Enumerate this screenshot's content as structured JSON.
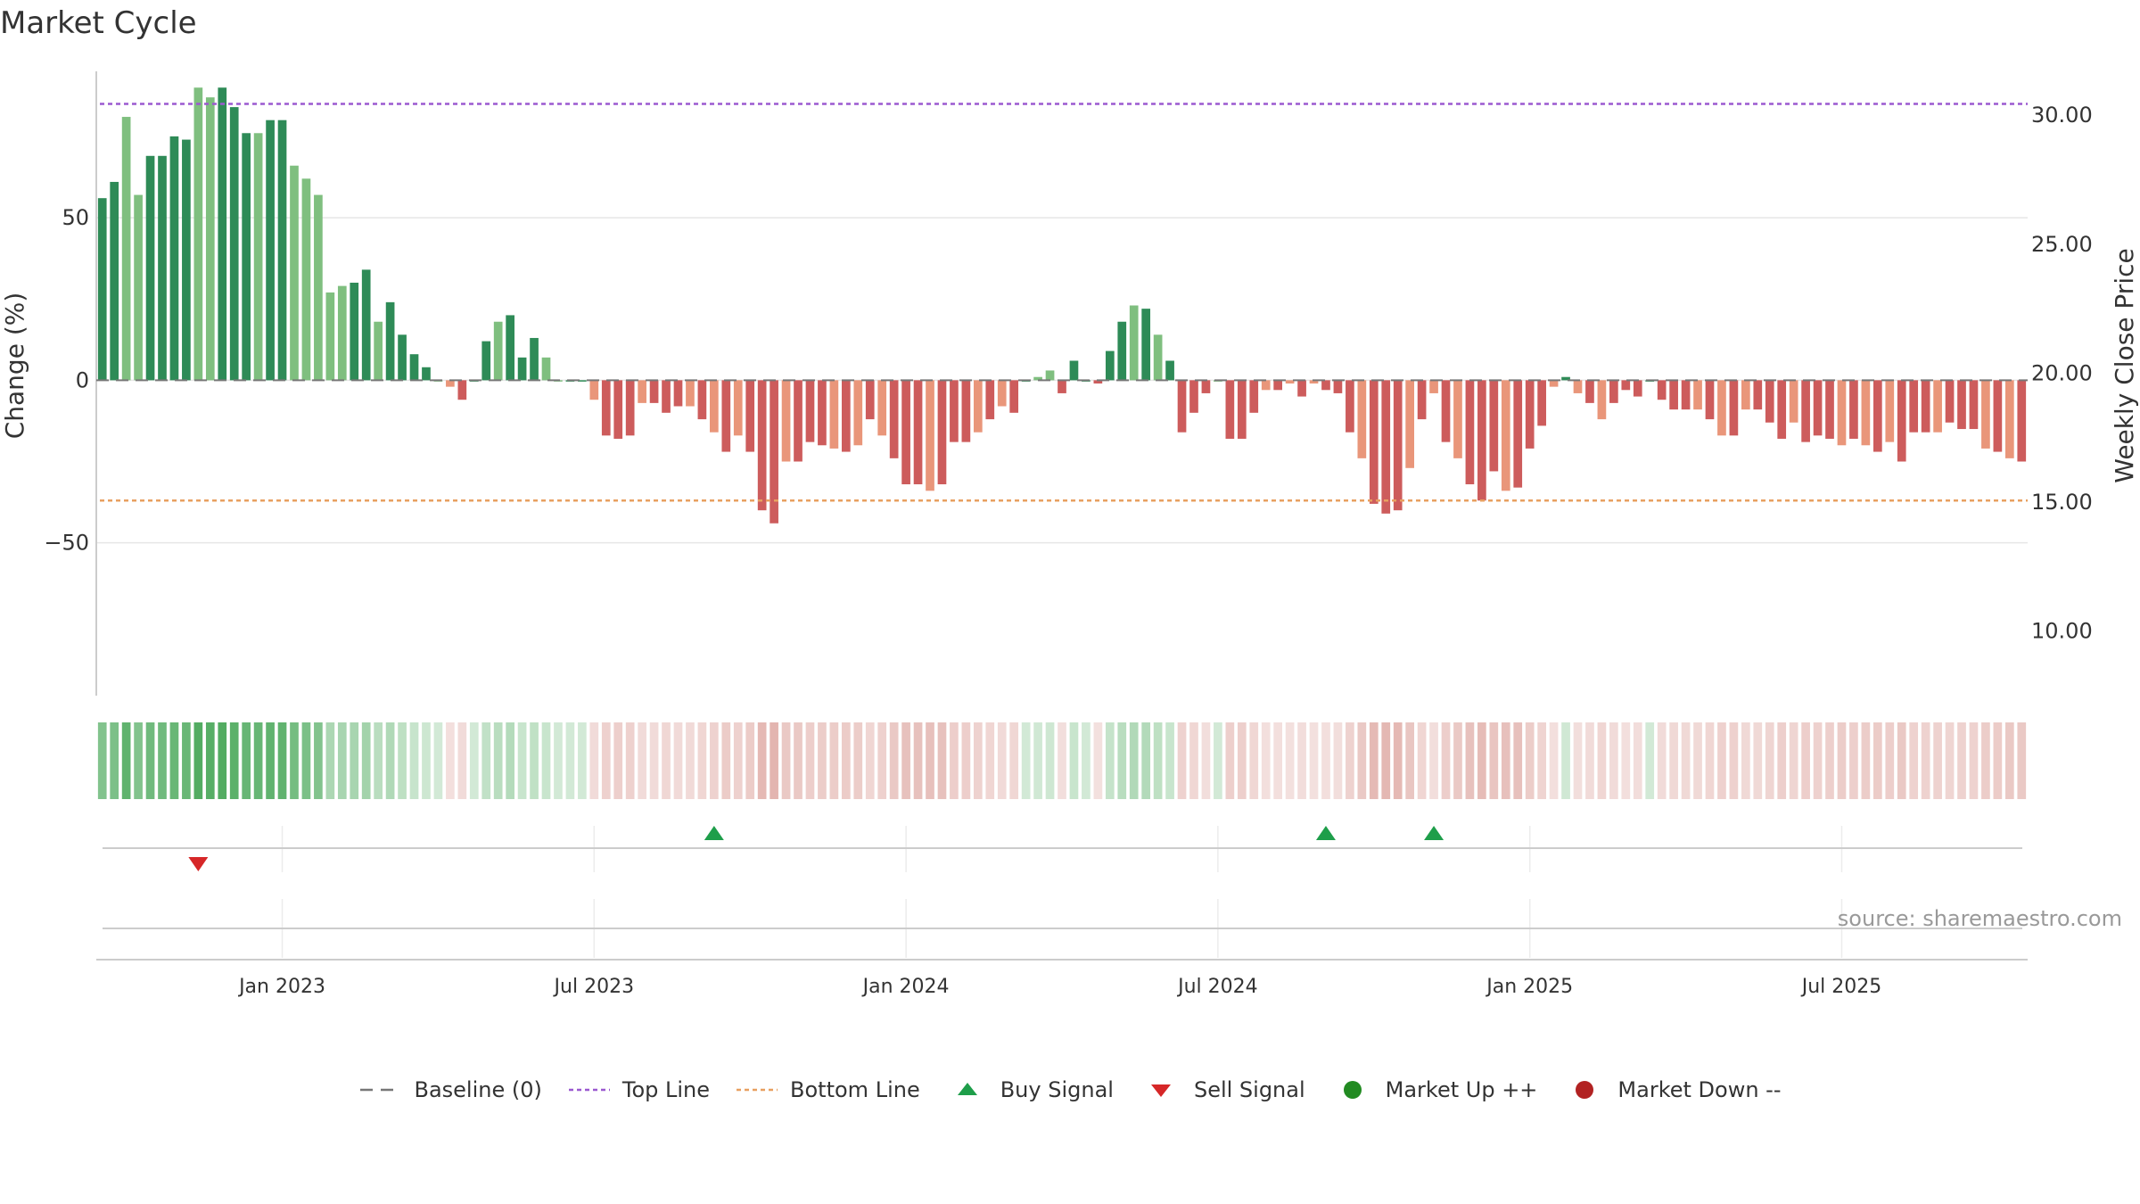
{
  "chart_data": {
    "type": "bar",
    "title": "Market Cycle",
    "ylabel": "Change (%)",
    "y2label": "Weekly Close Price",
    "source": "source: sharemaestro.com",
    "ylim": [
      -97,
      95
    ],
    "y2lim": [
      7.5,
      31.7
    ],
    "y_ticks": [
      {
        "value": 50,
        "label": "50"
      },
      {
        "value": 0,
        "label": "0"
      },
      {
        "value": -50,
        "label": "−50"
      }
    ],
    "y2_ticks": [
      {
        "value": 30,
        "label": "30.00"
      },
      {
        "value": 25,
        "label": "25.00"
      },
      {
        "value": 20,
        "label": "20.00"
      },
      {
        "value": 15,
        "label": "15.00"
      },
      {
        "value": 10,
        "label": "10.00"
      }
    ],
    "x_ticks": [
      {
        "week": 15,
        "label": "Jan 2023"
      },
      {
        "week": 41,
        "label": "Jul 2023"
      },
      {
        "week": 67,
        "label": "Jan 2024"
      },
      {
        "week": 93,
        "label": "Jul 2024"
      },
      {
        "week": 119,
        "label": "Jan 2025"
      },
      {
        "week": 145,
        "label": "Jul 2025"
      }
    ],
    "top_line": 85,
    "bottom_line": -37,
    "baseline": 0,
    "values": [
      56,
      61,
      81,
      57,
      69,
      69,
      75,
      74,
      90,
      87,
      90,
      84,
      76,
      76,
      80,
      80,
      66,
      62,
      57,
      27,
      29,
      30,
      34,
      18,
      24,
      14,
      8,
      4,
      0,
      -2,
      -6,
      0,
      12,
      18,
      20,
      7,
      13,
      7,
      0,
      0,
      0,
      -6,
      -17,
      -18,
      -17,
      -7,
      -7,
      -10,
      -8,
      -8,
      -12,
      -16,
      -22,
      -17,
      -22,
      -40,
      -44,
      -25,
      -25,
      -19,
      -20,
      -21,
      -22,
      -20,
      -12,
      -17,
      -24,
      -32,
      -32,
      -34,
      -32,
      -19,
      -19,
      -16,
      -12,
      -8,
      -10,
      0,
      1,
      3,
      -4,
      6,
      0,
      -1,
      9,
      18,
      23,
      22,
      14,
      6,
      -16,
      -10,
      -4,
      0,
      -18,
      -18,
      -10,
      -3,
      -3,
      -1,
      -5,
      -1,
      -3,
      -4,
      -16,
      -24,
      -38,
      -41,
      -40,
      -27,
      -12,
      -4,
      -19,
      -24,
      -32,
      -37,
      -28,
      -34,
      -33,
      -21,
      -14,
      -2,
      1,
      -4,
      -7,
      -12,
      -7,
      -3,
      -5,
      0,
      -6,
      -9,
      -9,
      -9,
      -12,
      -17,
      -17,
      -9,
      -9,
      -13,
      -18,
      -13,
      -19,
      -17,
      -18,
      -20,
      -18,
      -20,
      -22,
      -19,
      -25,
      -16,
      -16,
      -16,
      -13,
      -15,
      -15,
      -21,
      -22,
      -24,
      -25
    ],
    "buy_signals": [
      51,
      102,
      111
    ],
    "sell_signals": [
      8
    ],
    "legend": [
      {
        "type": "baseline",
        "label": "Baseline (0)",
        "color": "#777777"
      },
      {
        "type": "top",
        "label": "Top Line",
        "color": "#9b59d0"
      },
      {
        "type": "bottom",
        "label": "Bottom Line",
        "color": "#e8a060"
      },
      {
        "type": "buy",
        "label": "Buy Signal",
        "color": "#1e9e4a"
      },
      {
        "type": "sell",
        "label": "Sell Signal",
        "color": "#d62728"
      },
      {
        "type": "up",
        "label": "Market Up ++",
        "color": "#228b22"
      },
      {
        "type": "down",
        "label": "Market Down --",
        "color": "#b22222"
      }
    ]
  },
  "colors": {
    "up_strong": "#2e8b57",
    "up_light": "#7fbf7f",
    "down_strong": "#cd5c5c",
    "down_light": "#e9967a",
    "heat_up": "#4aa85a",
    "heat_down": "#cd7b72"
  }
}
